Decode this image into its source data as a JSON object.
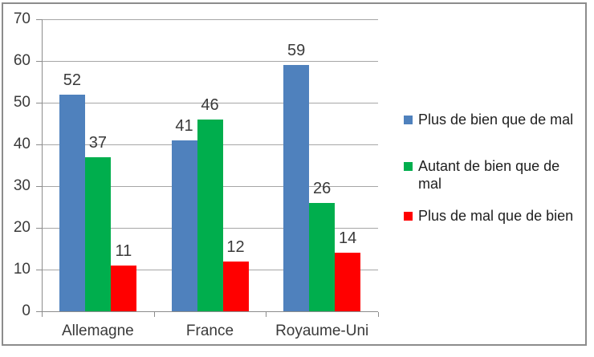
{
  "chart_data": {
    "type": "bar",
    "title": "",
    "xlabel": "",
    "ylabel": "",
    "categories": [
      "Allemagne",
      "France",
      "Royaume-Uni"
    ],
    "series": [
      {
        "name": "Plus de bien que de mal",
        "color": "#4F81BD",
        "values": [
          52,
          41,
          59
        ]
      },
      {
        "name": "Autant de bien que de mal",
        "color": "#00AE4D",
        "values": [
          37,
          46,
          26
        ]
      },
      {
        "name": "Plus de mal que de bien",
        "color": "#FF0000",
        "values": [
          11,
          12,
          14
        ]
      }
    ],
    "ylim": [
      0,
      70
    ],
    "ytick_step": 10,
    "ytick_labels": [
      "0",
      "10",
      "20",
      "30",
      "40",
      "50",
      "60",
      "70"
    ],
    "grid": true,
    "data_labels": true,
    "legend_position": "right"
  },
  "style": {
    "frame_border": "#8c8c8c",
    "axis_color": "#8c8c8c",
    "grid_color": "#a6a6a6",
    "text_color": "#3a3a3a",
    "background": "#ffffff"
  }
}
